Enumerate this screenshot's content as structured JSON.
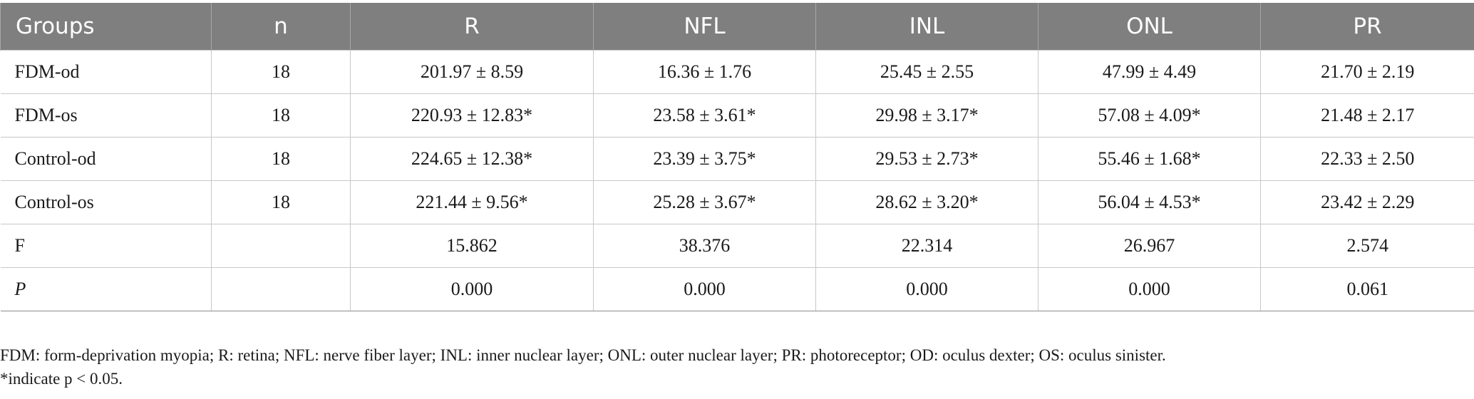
{
  "table": {
    "headers": [
      "Groups",
      "n",
      "R",
      "NFL",
      "INL",
      "ONL",
      "PR"
    ],
    "rows": [
      [
        "FDM-od",
        "18",
        "201.97 ± 8.59",
        "16.36 ± 1.76",
        "25.45 ± 2.55",
        "47.99 ± 4.49",
        "21.70 ± 2.19"
      ],
      [
        "FDM-os",
        "18",
        "220.93 ± 12.83*",
        "23.58 ± 3.61*",
        "29.98 ± 3.17*",
        "57.08 ± 4.09*",
        "21.48 ± 2.17"
      ],
      [
        "Control-od",
        "18",
        "224.65 ± 12.38*",
        "23.39 ± 3.75*",
        "29.53 ± 2.73*",
        "55.46 ± 1.68*",
        "22.33 ± 2.50"
      ],
      [
        "Control-os",
        "18",
        "221.44 ± 9.56*",
        "25.28 ± 3.67*",
        "28.62 ± 3.20*",
        "56.04 ± 4.53*",
        "23.42 ± 2.29"
      ],
      [
        "F",
        "",
        "15.862",
        "38.376",
        "22.314",
        "26.967",
        "2.574"
      ],
      [
        "P",
        "",
        "0.000",
        "0.000",
        "0.000",
        "0.000",
        "0.061"
      ]
    ]
  },
  "notes": {
    "abbreviations": "FDM: form-deprivation myopia; R: retina; NFL: nerve fiber layer; INL: inner nuclear layer; ONL: outer nuclear layer; PR: photoreceptor; OD: oculus dexter; OS: oculus sinister.",
    "significance": "*indicate p < 0.05."
  },
  "colors": {
    "header_background": "#7f7f7f",
    "header_text": "#ffffff",
    "grid_line": "#c8c8c8"
  }
}
